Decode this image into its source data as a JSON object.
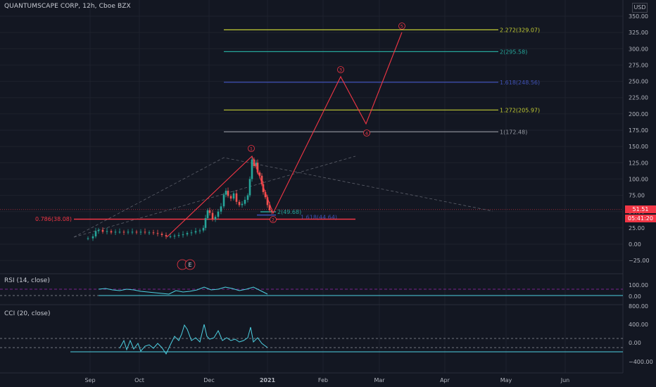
{
  "header": {
    "title": "QUANTUMSCAPE CORP, 12h, Cboe BZX",
    "currency": "USD"
  },
  "price_axis": {
    "ticks": [
      "350.00",
      "325.00",
      "300.00",
      "275.00",
      "250.00",
      "225.00",
      "200.00",
      "175.00",
      "150.00",
      "125.00",
      "100.00",
      "75.00",
      "50.00",
      "25.00",
      "0.00",
      "−25.00"
    ]
  },
  "last_price": {
    "value": "51.51",
    "countdown": "05:41:20"
  },
  "fib_levels": [
    {
      "label": "2.272(329.07)",
      "color": "#c0ca33"
    },
    {
      "label": "2(295.58)",
      "color": "#26a69a"
    },
    {
      "label": "1.618(248.56)",
      "color": "#3f51b5"
    },
    {
      "label": "1.272(205.97)",
      "color": "#c0ca33"
    },
    {
      "label": "1(172.48)",
      "color": "#9598a1"
    },
    {
      "label": "2(49.68)",
      "color": "#26a69a"
    },
    {
      "label": "1.618(44.64)",
      "color": "#3f51b5"
    }
  ],
  "retracement": {
    "label": "0.786(38.08)",
    "color": "#f23645"
  },
  "wave_labels": [
    "1",
    "2",
    "3",
    "4",
    "5"
  ],
  "event_marker": "E",
  "rsi": {
    "label": "RSI (14, close)",
    "ticks": [
      "100.00",
      "0.00"
    ]
  },
  "cci": {
    "label": "CCI (20, close)",
    "ticks": [
      "800.00",
      "400.00",
      "0.00",
      "−400.00"
    ]
  },
  "time_axis": {
    "labels": [
      "Sep",
      "Oct",
      "Dec",
      "2021",
      "Feb",
      "Mar",
      "Apr",
      "May",
      "Jun"
    ]
  },
  "colors": {
    "up": "#26a69a",
    "down": "#ef5350",
    "wave": "#f23645",
    "background": "#131722",
    "indicator": "#4dd0e1"
  }
}
